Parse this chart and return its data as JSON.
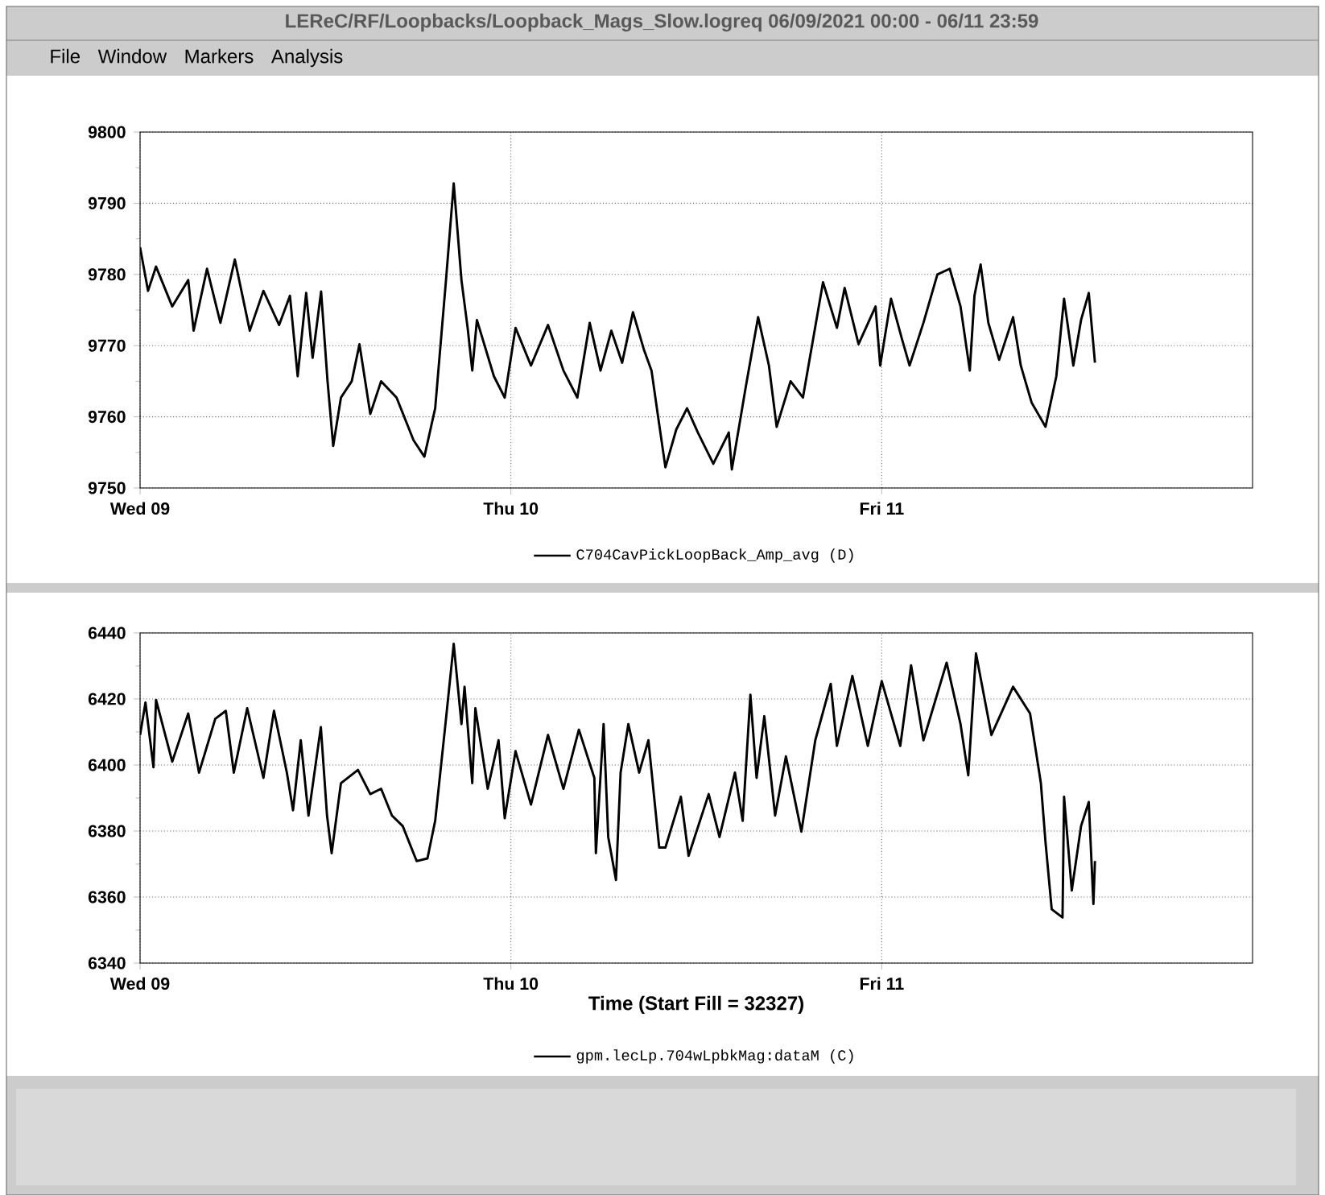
{
  "chart_data": [
    {
      "type": "line",
      "title": "LEReC/RF/Loopbacks/Loopback_Mags_Slow.logreq      06/09/2021 00:00 - 06/11 23:59",
      "annotations": [
        "File",
        "Window",
        "Markers",
        "Analysis"
      ],
      "xlim": [
        "2021-06-09T00:00",
        "2021-06-12T00:00"
      ],
      "xticks": [
        {
          "value": "2021-06-09T00:00",
          "label": "Wed 09"
        },
        {
          "value": "2021-06-10T00:00",
          "label": "Thu 10"
        },
        {
          "value": "2021-06-11T00:00",
          "label": "Fri 11"
        }
      ],
      "ylim": [
        9750,
        9800
      ],
      "yticks": [
        9750,
        9760,
        9770,
        9780,
        9790,
        9800
      ],
      "grid": true,
      "legend": "bottom",
      "marker": "none",
      "line_style": "solid",
      "series": [
        {
          "name": "C704CavPickLoopBack_Amp_avg (D)",
          "color": "#000000",
          "x": [
            "2021-06-09T00:00",
            "2021-06-09T00:31",
            "2021-06-09T01:02",
            "2021-06-09T02:05",
            "2021-06-09T03:07",
            "2021-06-09T03:28",
            "2021-06-09T04:20",
            "2021-06-09T05:12",
            "2021-06-09T06:08",
            "2021-06-09T07:06",
            "2021-06-09T07:59",
            "2021-06-09T09:00",
            "2021-06-09T09:42",
            "2021-06-09T10:12",
            "2021-06-09T10:45",
            "2021-06-09T11:10",
            "2021-06-09T11:43",
            "2021-06-09T12:08",
            "2021-06-09T12:30",
            "2021-06-09T13:00",
            "2021-06-09T13:42",
            "2021-06-09T14:12",
            "2021-06-09T14:54",
            "2021-06-09T15:36",
            "2021-06-09T16:36",
            "2021-06-09T17:42",
            "2021-06-09T18:24",
            "2021-06-09T19:06",
            "2021-06-09T19:48",
            "2021-06-09T20:18",
            "2021-06-09T20:48",
            "2021-06-09T21:12",
            "2021-06-09T21:30",
            "2021-06-09T21:48",
            "2021-06-09T22:54",
            "2021-06-09T23:36",
            "2021-06-10T00:18",
            "2021-06-10T01:18",
            "2021-06-10T02:24",
            "2021-06-10T03:24",
            "2021-06-10T04:18",
            "2021-06-10T05:06",
            "2021-06-10T05:48",
            "2021-06-10T06:30",
            "2021-06-10T07:12",
            "2021-06-10T07:54",
            "2021-06-10T08:36",
            "2021-06-10T09:06",
            "2021-06-10T09:36",
            "2021-06-10T10:00",
            "2021-06-10T10:42",
            "2021-06-10T11:24",
            "2021-06-10T12:06",
            "2021-06-10T13:06",
            "2021-06-10T14:06",
            "2021-06-10T14:18",
            "2021-06-10T15:12",
            "2021-06-10T16:00",
            "2021-06-10T16:42",
            "2021-06-10T17:12",
            "2021-06-10T18:06",
            "2021-06-10T18:54",
            "2021-06-10T20:12",
            "2021-06-10T21:06",
            "2021-06-10T21:36",
            "2021-06-10T22:30",
            "2021-06-10T23:36",
            "2021-06-10T23:54",
            "2021-06-11T00:36",
            "2021-06-11T01:18",
            "2021-06-11T01:48",
            "2021-06-11T02:42",
            "2021-06-11T03:36",
            "2021-06-11T04:24",
            "2021-06-11T05:06",
            "2021-06-11T05:42",
            "2021-06-11T06:00",
            "2021-06-11T06:24",
            "2021-06-11T06:54",
            "2021-06-11T07:36",
            "2021-06-11T08:30",
            "2021-06-11T09:00",
            "2021-06-11T09:42",
            "2021-06-11T10:36",
            "2021-06-11T11:18",
            "2021-06-11T11:48",
            "2021-06-11T12:24",
            "2021-06-11T12:54",
            "2021-06-11T13:24",
            "2021-06-11T13:48"
          ],
          "values": [
            9783.8,
            9777.7,
            9781.1,
            9775.5,
            9779.2,
            9772.1,
            9780.8,
            9773.2,
            9782.1,
            9772.1,
            9777.7,
            9772.9,
            9777,
            9765.7,
            9777.4,
            9768.3,
            9777.6,
            9765,
            9755.9,
            9762.7,
            9765,
            9770.2,
            9760.4,
            9765,
            9762.7,
            9756.7,
            9754.4,
            9761.2,
            9779.2,
            9792.8,
            9779.2,
            9772.5,
            9766.5,
            9773.6,
            9765.7,
            9762.7,
            9772.5,
            9767.2,
            9772.9,
            9766.5,
            9762.7,
            9773.2,
            9766.5,
            9772.1,
            9767.6,
            9774.7,
            9769.5,
            9766.5,
            9758.9,
            9752.9,
            9758.2,
            9761.2,
            9757.8,
            9753.4,
            9757.8,
            9752.6,
            9764.2,
            9774,
            9767.2,
            9758.6,
            9765,
            9762.7,
            9778.9,
            9772.5,
            9778.1,
            9770.2,
            9775.5,
            9767.2,
            9776.6,
            9771,
            9767.2,
            9773.2,
            9780,
            9780.8,
            9775.5,
            9766.5,
            9777,
            9781.4,
            9773.2,
            9768,
            9774,
            9767.2,
            9762,
            9758.6,
            9765.7,
            9776.6,
            9767.2,
            9773.6,
            9777.4,
            9767.6
          ]
        }
      ]
    },
    {
      "type": "line",
      "xlabel": "Time (Start Fill = 32327)",
      "xlim": [
        "2021-06-09T00:00",
        "2021-06-12T00:00"
      ],
      "xticks": [
        {
          "value": "2021-06-09T00:00",
          "label": "Wed 09"
        },
        {
          "value": "2021-06-10T00:00",
          "label": "Thu 10"
        },
        {
          "value": "2021-06-11T00:00",
          "label": "Fri 11"
        }
      ],
      "ylim": [
        6340,
        6440
      ],
      "yticks": [
        6340,
        6360,
        6380,
        6400,
        6420,
        6440
      ],
      "grid": true,
      "legend": "bottom",
      "marker": "none",
      "line_style": "solid",
      "series": [
        {
          "name": "gpm.lecLp.704wLpbkMag:dataM (C)",
          "color": "#000000",
          "x": [
            "2021-06-09T00:00",
            "2021-06-09T00:21",
            "2021-06-09T00:52",
            "2021-06-09T01:02",
            "2021-06-09T02:05",
            "2021-06-09T03:07",
            "2021-06-09T03:49",
            "2021-06-09T04:52",
            "2021-06-09T05:33",
            "2021-06-09T06:04",
            "2021-06-09T06:56",
            "2021-06-09T07:59",
            "2021-06-09T08:40",
            "2021-06-09T09:30",
            "2021-06-09T09:54",
            "2021-06-09T10:24",
            "2021-06-09T10:54",
            "2021-06-09T11:42",
            "2021-06-09T12:06",
            "2021-06-09T12:24",
            "2021-06-09T13:00",
            "2021-06-09T14:06",
            "2021-06-09T14:54",
            "2021-06-09T15:36",
            "2021-06-09T16:18",
            "2021-06-09T17:00",
            "2021-06-09T17:54",
            "2021-06-09T18:36",
            "2021-06-09T19:06",
            "2021-06-09T19:48",
            "2021-06-09T20:18",
            "2021-06-09T20:48",
            "2021-06-09T21:00",
            "2021-06-09T21:30",
            "2021-06-09T21:42",
            "2021-06-09T22:30",
            "2021-06-09T23:12",
            "2021-06-09T23:36",
            "2021-06-10T00:18",
            "2021-06-10T01:18",
            "2021-06-10T02:24",
            "2021-06-10T03:24",
            "2021-06-10T04:24",
            "2021-06-10T05:24",
            "2021-06-10T05:30",
            "2021-06-10T06:00",
            "2021-06-10T06:18",
            "2021-06-10T06:48",
            "2021-06-10T07:06",
            "2021-06-10T07:36",
            "2021-06-10T08:18",
            "2021-06-10T08:54",
            "2021-06-10T09:36",
            "2021-06-10T10:00",
            "2021-06-10T11:00",
            "2021-06-10T11:30",
            "2021-06-10T12:48",
            "2021-06-10T13:30",
            "2021-06-10T14:30",
            "2021-06-10T15:00",
            "2021-06-10T15:30",
            "2021-06-10T15:54",
            "2021-06-10T16:24",
            "2021-06-10T17:06",
            "2021-06-10T17:48",
            "2021-06-10T18:48",
            "2021-06-10T19:42",
            "2021-06-10T20:42",
            "2021-06-10T21:06",
            "2021-06-10T22:06",
            "2021-06-10T23:06",
            "2021-06-11T00:00",
            "2021-06-11T01:12",
            "2021-06-11T01:54",
            "2021-06-11T02:42",
            "2021-06-11T04:12",
            "2021-06-11T05:06",
            "2021-06-11T05:36",
            "2021-06-11T06:06",
            "2021-06-11T07:06",
            "2021-06-11T08:30",
            "2021-06-11T09:36",
            "2021-06-11T10:18",
            "2021-06-11T10:36",
            "2021-06-11T11:00",
            "2021-06-11T11:42",
            "2021-06-11T11:48",
            "2021-06-11T12:18",
            "2021-06-11T12:54",
            "2021-06-11T13:24",
            "2021-06-11T13:42",
            "2021-06-11T13:48"
          ],
          "values": [
            6409.1,
            6418.9,
            6399.3,
            6419.7,
            6401,
            6415.6,
            6397.7,
            6414,
            6416.4,
            6397.7,
            6417.2,
            6396.1,
            6416.4,
            6397.7,
            6386.3,
            6407.5,
            6384.7,
            6411.5,
            6384.7,
            6373.3,
            6394.5,
            6398.5,
            6391.2,
            6392.8,
            6384.7,
            6381.5,
            6370.9,
            6371.7,
            6383.1,
            6414,
            6436.7,
            6412.4,
            6423.7,
            6394.5,
            6417.2,
            6392.8,
            6407.5,
            6383.9,
            6404.2,
            6388,
            6409.1,
            6392.8,
            6410.7,
            6396.1,
            6373.3,
            6412.4,
            6378.2,
            6365.2,
            6397.7,
            6412.4,
            6397.7,
            6407.5,
            6375,
            6375,
            6390.4,
            6372.5,
            6391.2,
            6378.2,
            6397.7,
            6383.1,
            6421.3,
            6396.1,
            6414.8,
            6384.7,
            6402.6,
            6379.8,
            6407.5,
            6424.6,
            6405.8,
            6427,
            6405.8,
            6425.4,
            6405.8,
            6430.2,
            6407.5,
            6431,
            6412.4,
            6396.9,
            6433.8,
            6409.1,
            6423.7,
            6415.6,
            6394.5,
            6376.6,
            6356.3,
            6353.8,
            6390.4,
            6362,
            6381.5,
            6388.8,
            6357.9,
            6370.9
          ]
        }
      ]
    }
  ]
}
